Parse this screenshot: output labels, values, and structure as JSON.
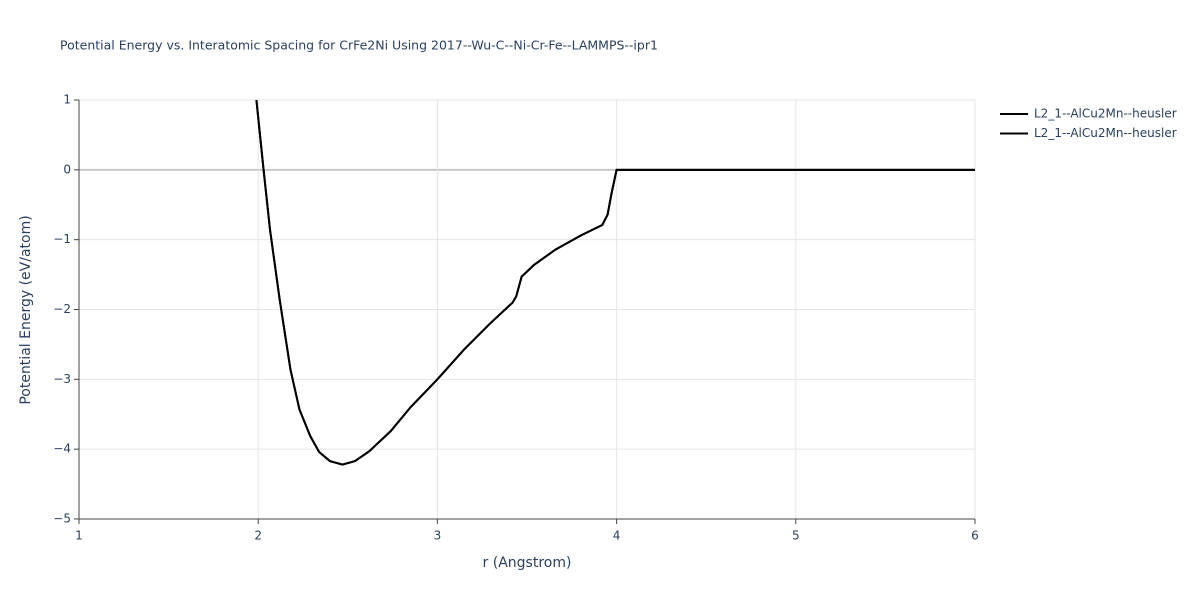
{
  "chart_data": {
    "type": "line",
    "title": "Potential Energy vs. Interatomic Spacing for CrFe2Ni Using 2017--Wu-C--Ni-Cr-Fe--LAMMPS--ipr1",
    "x_label": "r (Angstrom)",
    "y_label": "Potential Energy (eV/atom)",
    "xlim": [
      1,
      6
    ],
    "ylim": [
      -5,
      1
    ],
    "xticks": [
      1,
      2,
      3,
      4,
      5,
      6
    ],
    "yticks": [
      {
        "value": -5,
        "label": "−5"
      },
      {
        "value": -4,
        "label": "−4"
      },
      {
        "value": -3,
        "label": "−3"
      },
      {
        "value": -2,
        "label": "−2"
      },
      {
        "value": -1,
        "label": "−1"
      },
      0,
      1
    ],
    "grid": true,
    "legend": "top-right",
    "series": [
      {
        "name": "L2_1--AlCu2Mn--heusler",
        "color": "#000000",
        "x": [
          1.99,
          2.03,
          2.066,
          2.12,
          2.18,
          2.23,
          2.29,
          2.34,
          2.4,
          2.47,
          2.54,
          2.62,
          2.74,
          2.85,
          3.0,
          3.15,
          3.29,
          3.42,
          3.44,
          3.47,
          3.54,
          3.66,
          3.8,
          3.92,
          3.95,
          3.97,
          4.0,
          5.0,
          6.0
        ],
        "values": [
          1.0,
          0.0,
          -0.86,
          -1.86,
          -2.86,
          -3.43,
          -3.81,
          -4.04,
          -4.17,
          -4.22,
          -4.17,
          -4.03,
          -3.74,
          -3.4,
          -3.0,
          -2.57,
          -2.21,
          -1.9,
          -1.81,
          -1.53,
          -1.36,
          -1.14,
          -0.94,
          -0.79,
          -0.64,
          -0.36,
          0.0,
          0.0,
          0.0
        ]
      },
      {
        "name": "L2_1--AlCu2Mn--heusler",
        "color": "#000000",
        "x": [
          1.99,
          2.03,
          2.066,
          2.12,
          2.18,
          2.23,
          2.29,
          2.34,
          2.4,
          2.47,
          2.54,
          2.62,
          2.74,
          2.85,
          3.0,
          3.15,
          3.29,
          3.42,
          3.44,
          3.47,
          3.54,
          3.66,
          3.8,
          3.92,
          3.95,
          3.97,
          4.0,
          5.0,
          6.0
        ],
        "values": [
          1.0,
          0.0,
          -0.86,
          -1.86,
          -2.86,
          -3.43,
          -3.81,
          -4.04,
          -4.17,
          -4.22,
          -4.17,
          -4.03,
          -3.74,
          -3.4,
          -3.0,
          -2.57,
          -2.21,
          -1.9,
          -1.81,
          -1.53,
          -1.36,
          -1.14,
          -0.94,
          -0.79,
          -0.64,
          -0.36,
          0.0,
          0.0,
          0.0
        ]
      }
    ]
  }
}
